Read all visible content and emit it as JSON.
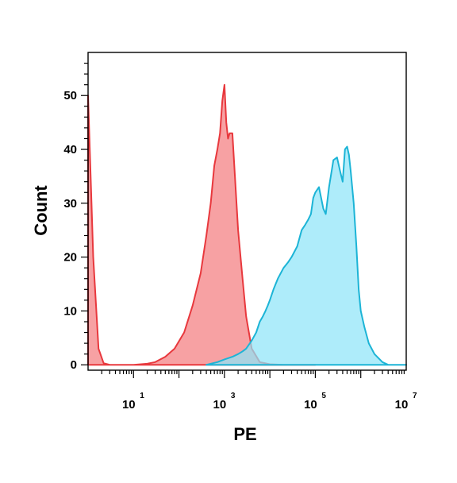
{
  "chart_data": {
    "type": "area",
    "title": "",
    "xlabel": "PE",
    "ylabel": "Count",
    "x_scale": "log10",
    "xlim": [
      1,
      10000000
    ],
    "ylim": [
      -1,
      58
    ],
    "grid": false,
    "legend": "none",
    "x_ticks": [
      {
        "base": "10",
        "exp": "1",
        "value": 10
      },
      {
        "base": "10",
        "exp": "3",
        "value": 1000
      },
      {
        "base": "10",
        "exp": "5",
        "value": 100000
      },
      {
        "base": "10",
        "exp": "7",
        "value": 10000000
      }
    ],
    "y_ticks": [
      "0",
      "10",
      "20",
      "30",
      "40",
      "50"
    ],
    "y_tick_values": [
      0,
      10,
      20,
      30,
      40,
      50
    ],
    "series": [
      {
        "color": "#e8383d",
        "fill": "#f7a1a3",
        "x": [
          1,
          1.3,
          1.7,
          2.2,
          3,
          5,
          10,
          20,
          30,
          50,
          80,
          130,
          200,
          300,
          400,
          500,
          600,
          700,
          800,
          900,
          1000,
          1100,
          1200,
          1300,
          1500,
          1700,
          2000,
          2500,
          3000,
          4000,
          6000,
          10000,
          20000,
          100000
        ],
        "y": [
          50,
          20,
          3,
          0.3,
          0,
          0,
          0,
          0.2,
          0.5,
          1.5,
          3,
          6,
          11,
          17,
          24,
          30,
          37,
          40,
          43,
          49,
          52,
          45,
          42,
          43,
          43,
          35,
          25,
          16,
          9,
          3,
          0.5,
          0.1,
          0,
          0
        ]
      },
      {
        "color": "#1cb4d6",
        "fill": "#8fe5f8",
        "x": [
          50000,
          400,
          700,
          1000,
          1500,
          2000,
          2500,
          3000,
          4000,
          5000,
          6000,
          7000,
          8000,
          9000,
          10000,
          12000,
          15000,
          20000,
          25000,
          30000,
          40000,
          50000,
          60000,
          70000,
          80000,
          90000,
          100000,
          120000,
          150000,
          170000,
          200000,
          250000,
          300000,
          350000,
          400000,
          450000,
          500000,
          550000,
          600000,
          700000,
          800000,
          900000,
          1000000,
          1200000,
          1500000,
          2000000,
          3000000,
          4000000,
          6000000,
          10000000
        ],
        "y": [
          0,
          0,
          0.5,
          1,
          1.5,
          2,
          2.5,
          3,
          4.5,
          6,
          8,
          9,
          10,
          11,
          12,
          14,
          16,
          18,
          19,
          20,
          22,
          25,
          26,
          27,
          28,
          31,
          32,
          33,
          29,
          28,
          33,
          38,
          38.5,
          36,
          34,
          40,
          40.5,
          39,
          36,
          30,
          22,
          14,
          10,
          7,
          4,
          2,
          0.5,
          0,
          0,
          0
        ]
      }
    ]
  }
}
